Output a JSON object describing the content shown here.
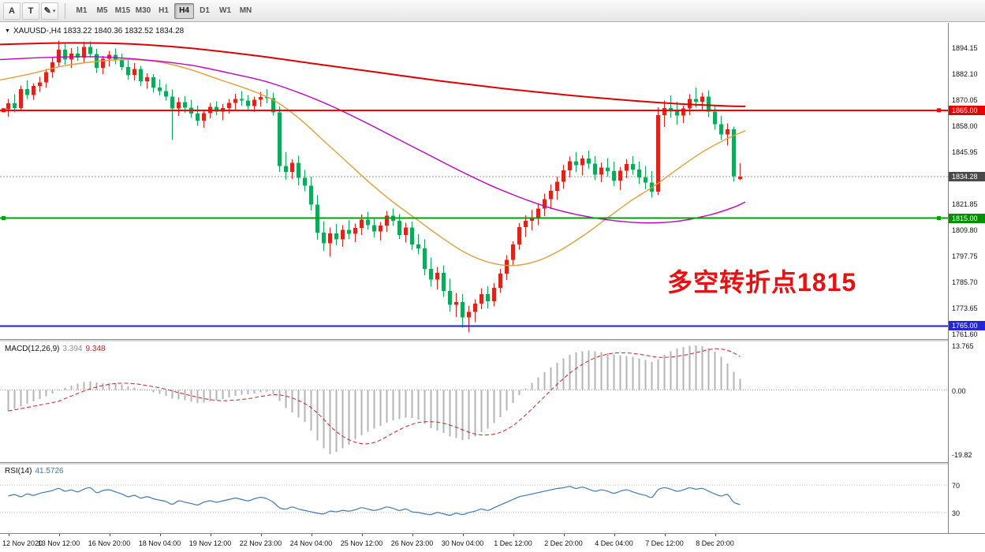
{
  "toolbar": {
    "buttons": [
      {
        "name": "cursor-tool",
        "glyph": "A"
      },
      {
        "name": "text-tool",
        "glyph": "T"
      },
      {
        "name": "draw-tool",
        "glyph": "✎",
        "caret": "▾"
      }
    ],
    "timeframes": [
      {
        "label": "M1",
        "active": false
      },
      {
        "label": "M5",
        "active": false
      },
      {
        "label": "M15",
        "active": false
      },
      {
        "label": "M30",
        "active": false
      },
      {
        "label": "H1",
        "active": false
      },
      {
        "label": "H4",
        "active": true
      },
      {
        "label": "D1",
        "active": false
      },
      {
        "label": "W1",
        "active": false
      },
      {
        "label": "MN",
        "active": false
      }
    ]
  },
  "chart": {
    "collapse_icon": "▼",
    "title": "XAUUSD-,H4 1833.22 1840.36 1832.52 1834.28",
    "annotation": {
      "text": "多空转折点1815",
      "color": "#e81010"
    },
    "colors": {
      "up": "#d8261d",
      "down": "#11a75c",
      "ma_slow": "#dd0000",
      "ma_mid": "#c400c4",
      "ma_fast": "#e09f3a",
      "bid": "#9b9b9b"
    },
    "bid_price": 1834.28,
    "price_axis": [
      "1894.15",
      "1882.10",
      "1870.05",
      "1858.00",
      "1845.95",
      "1833.90",
      "1821.85",
      "1809.80",
      "1797.75",
      "1785.70",
      "1773.65",
      "1761.60"
    ],
    "price_tags": [
      {
        "text": "1865.00",
        "price": 1865.0,
        "bg": "#e60000"
      },
      {
        "text": "1834.28",
        "price": 1834.28,
        "bg": "#4a4a4a"
      },
      {
        "text": "1815.00",
        "price": 1815.0,
        "bg": "#009000"
      },
      {
        "text": "1765.00",
        "price": 1765.0,
        "bg": "#2424d8"
      }
    ],
    "hlines": [
      {
        "name": "resistance-line",
        "price": 1865.0,
        "color": "#ff0000",
        "handles": true
      },
      {
        "name": "support-line",
        "price": 1815.0,
        "color": "#00a000",
        "handles": true
      },
      {
        "name": "lower-line",
        "price": 1765.0,
        "color": "#1c1ce0",
        "handles": false
      }
    ],
    "candles": [
      [
        1865.5,
        1870.2,
        1862.0,
        1868.3
      ],
      [
        1868.3,
        1872.5,
        1864.1,
        1866.0
      ],
      [
        1866.0,
        1876.4,
        1865.2,
        1874.8
      ],
      [
        1874.8,
        1878.9,
        1870.3,
        1872.1
      ],
      [
        1872.1,
        1877.6,
        1869.8,
        1876.2
      ],
      [
        1876.2,
        1880.4,
        1873.5,
        1877.9
      ],
      [
        1877.9,
        1884.2,
        1875.6,
        1882.7
      ],
      [
        1882.7,
        1889.5,
        1880.1,
        1887.3
      ],
      [
        1887.3,
        1897.2,
        1885.4,
        1893.1
      ],
      [
        1893.1,
        1896.4,
        1886.2,
        1888.5
      ],
      [
        1888.5,
        1893.8,
        1884.7,
        1891.2
      ],
      [
        1891.2,
        1894.6,
        1887.9,
        1889.4
      ],
      [
        1889.4,
        1896.8,
        1887.2,
        1894.3
      ],
      [
        1894.3,
        1897.0,
        1889.5,
        1891.1
      ],
      [
        1891.1,
        1893.4,
        1882.3,
        1884.6
      ],
      [
        1884.6,
        1890.2,
        1881.7,
        1888.9
      ],
      [
        1888.9,
        1892.5,
        1885.3,
        1890.7
      ],
      [
        1890.7,
        1893.6,
        1886.4,
        1888.2
      ],
      [
        1888.2,
        1891.3,
        1883.5,
        1885.1
      ],
      [
        1885.1,
        1888.7,
        1879.2,
        1881.4
      ],
      [
        1881.4,
        1886.9,
        1878.8,
        1884.2
      ],
      [
        1884.2,
        1885.6,
        1876.3,
        1878.5
      ],
      [
        1878.5,
        1882.1,
        1874.9,
        1880.3
      ],
      [
        1880.3,
        1881.8,
        1873.2,
        1875.6
      ],
      [
        1875.6,
        1879.4,
        1871.8,
        1873.9
      ],
      [
        1873.9,
        1877.2,
        1869.5,
        1871.3
      ],
      [
        1871.3,
        1874.6,
        1851.2,
        1865.8
      ],
      [
        1865.8,
        1870.9,
        1862.4,
        1868.7
      ],
      [
        1868.7,
        1871.5,
        1863.8,
        1866.2
      ],
      [
        1866.2,
        1869.8,
        1861.5,
        1863.4
      ],
      [
        1863.4,
        1867.2,
        1857.8,
        1860.1
      ],
      [
        1860.1,
        1865.3,
        1856.9,
        1863.7
      ],
      [
        1863.7,
        1868.4,
        1861.2,
        1866.5
      ],
      [
        1866.5,
        1869.1,
        1862.7,
        1864.3
      ],
      [
        1864.3,
        1867.8,
        1860.4,
        1866.1
      ],
      [
        1866.1,
        1870.2,
        1863.5,
        1868.4
      ],
      [
        1868.4,
        1872.6,
        1865.1,
        1870.3
      ],
      [
        1870.3,
        1873.9,
        1867.2,
        1869.5
      ],
      [
        1869.5,
        1872.1,
        1864.8,
        1866.9
      ],
      [
        1866.9,
        1871.4,
        1864.2,
        1869.8
      ],
      [
        1869.8,
        1873.5,
        1866.7,
        1871.2
      ],
      [
        1871.2,
        1874.8,
        1868.3,
        1870.6
      ],
      [
        1870.6,
        1873.2,
        1862.5,
        1864.1
      ],
      [
        1864.1,
        1866.8,
        1836.4,
        1839.2
      ],
      [
        1839.2,
        1845.6,
        1832.8,
        1836.5
      ],
      [
        1836.5,
        1842.3,
        1833.1,
        1840.7
      ],
      [
        1840.7,
        1843.9,
        1830.2,
        1833.6
      ],
      [
        1833.6,
        1837.4,
        1827.5,
        1830.1
      ],
      [
        1830.1,
        1834.2,
        1818.6,
        1821.3
      ],
      [
        1821.3,
        1825.7,
        1804.9,
        1808.2
      ],
      [
        1808.2,
        1813.5,
        1799.8,
        1803.4
      ],
      [
        1803.4,
        1810.6,
        1797.2,
        1807.9
      ],
      [
        1807.9,
        1812.3,
        1802.5,
        1805.1
      ],
      [
        1805.1,
        1811.8,
        1801.7,
        1809.6
      ],
      [
        1809.6,
        1814.2,
        1805.3,
        1807.8
      ],
      [
        1807.8,
        1812.5,
        1803.9,
        1810.4
      ],
      [
        1810.4,
        1816.7,
        1807.2,
        1814.3
      ],
      [
        1814.3,
        1817.9,
        1809.5,
        1811.8
      ],
      [
        1811.8,
        1815.4,
        1806.1,
        1808.9
      ],
      [
        1808.9,
        1813.2,
        1804.6,
        1811.5
      ],
      [
        1811.5,
        1818.3,
        1808.7,
        1816.2
      ],
      [
        1816.2,
        1819.5,
        1811.3,
        1813.7
      ],
      [
        1813.7,
        1816.8,
        1805.4,
        1807.2
      ],
      [
        1807.2,
        1812.9,
        1803.8,
        1810.6
      ],
      [
        1810.6,
        1813.4,
        1800.2,
        1802.8
      ],
      [
        1802.8,
        1807.5,
        1798.3,
        1800.9
      ],
      [
        1800.9,
        1805.2,
        1788.6,
        1791.4
      ],
      [
        1791.4,
        1796.8,
        1783.2,
        1786.5
      ],
      [
        1786.5,
        1792.3,
        1781.9,
        1789.7
      ],
      [
        1789.7,
        1793.1,
        1778.4,
        1781.2
      ],
      [
        1781.2,
        1786.9,
        1771.5,
        1774.8
      ],
      [
        1774.8,
        1780.3,
        1769.2,
        1776.1
      ],
      [
        1776.1,
        1779.8,
        1764.3,
        1768.9
      ],
      [
        1768.9,
        1774.2,
        1762.1,
        1771.6
      ],
      [
        1771.6,
        1777.4,
        1766.8,
        1775.3
      ],
      [
        1775.3,
        1782.6,
        1772.9,
        1779.8
      ],
      [
        1779.8,
        1783.4,
        1773.2,
        1776.5
      ],
      [
        1776.5,
        1784.9,
        1774.1,
        1782.7
      ],
      [
        1782.7,
        1791.5,
        1780.3,
        1789.2
      ],
      [
        1789.2,
        1797.8,
        1786.4,
        1795.6
      ],
      [
        1795.6,
        1804.3,
        1793.1,
        1802.8
      ],
      [
        1802.8,
        1812.6,
        1800.5,
        1810.9
      ],
      [
        1810.9,
        1816.4,
        1806.2,
        1813.7
      ],
      [
        1813.7,
        1818.9,
        1809.3,
        1815.2
      ],
      [
        1815.2,
        1821.7,
        1811.8,
        1819.4
      ],
      [
        1819.4,
        1826.3,
        1815.9,
        1823.8
      ],
      [
        1823.8,
        1830.5,
        1819.2,
        1827.6
      ],
      [
        1827.6,
        1834.2,
        1823.4,
        1831.9
      ],
      [
        1831.9,
        1839.7,
        1828.5,
        1837.2
      ],
      [
        1837.2,
        1843.6,
        1833.8,
        1841.3
      ],
      [
        1841.3,
        1845.8,
        1836.2,
        1839.5
      ],
      [
        1839.5,
        1844.1,
        1834.7,
        1842.6
      ],
      [
        1842.6,
        1846.3,
        1837.9,
        1840.2
      ],
      [
        1840.2,
        1843.7,
        1832.5,
        1835.1
      ],
      [
        1835.1,
        1840.8,
        1831.6,
        1838.4
      ],
      [
        1838.4,
        1842.9,
        1834.3,
        1836.7
      ],
      [
        1836.7,
        1841.2,
        1829.8,
        1832.4
      ],
      [
        1832.4,
        1838.6,
        1828.1,
        1836.9
      ],
      [
        1836.9,
        1842.3,
        1833.5,
        1840.1
      ],
      [
        1840.1,
        1843.8,
        1835.2,
        1837.6
      ],
      [
        1837.6,
        1841.4,
        1830.7,
        1833.9
      ],
      [
        1833.9,
        1839.2,
        1828.4,
        1831.5
      ],
      [
        1831.5,
        1836.8,
        1824.6,
        1827.3
      ],
      [
        1827.3,
        1866.4,
        1825.9,
        1862.8
      ],
      [
        1862.8,
        1869.5,
        1857.2,
        1866.1
      ],
      [
        1866.1,
        1871.8,
        1861.4,
        1864.7
      ],
      [
        1864.7,
        1868.9,
        1858.3,
        1862.5
      ],
      [
        1862.5,
        1867.2,
        1859.1,
        1865.8
      ],
      [
        1865.8,
        1872.4,
        1862.7,
        1870.3
      ],
      [
        1870.3,
        1875.6,
        1866.2,
        1868.9
      ],
      [
        1868.9,
        1873.1,
        1864.5,
        1871.4
      ],
      [
        1871.4,
        1874.2,
        1861.8,
        1864.3
      ],
      [
        1864.3,
        1867.5,
        1855.9,
        1858.6
      ],
      [
        1858.6,
        1862.3,
        1851.2,
        1853.8
      ],
      [
        1853.8,
        1858.9,
        1848.6,
        1856.2
      ],
      [
        1856.2,
        1857.4,
        1831.8,
        1834.5
      ],
      [
        1833.22,
        1840.36,
        1832.52,
        1834.28
      ]
    ],
    "ma_slow": [
      [
        0,
        1895.5
      ],
      [
        80,
        1896.2
      ],
      [
        160,
        1895.8
      ],
      [
        240,
        1893.8
      ],
      [
        320,
        1890.5
      ],
      [
        400,
        1886.5
      ],
      [
        480,
        1882.5
      ],
      [
        560,
        1878.5
      ],
      [
        640,
        1875.0
      ],
      [
        720,
        1872.0
      ],
      [
        800,
        1869.5
      ],
      [
        860,
        1868.0
      ],
      [
        920,
        1867.0
      ],
      [
        945,
        1866.8
      ]
    ],
    "ma_mid": [
      [
        0,
        1888.5
      ],
      [
        60,
        1889.5
      ],
      [
        120,
        1889.8
      ],
      [
        180,
        1888.5
      ],
      [
        240,
        1886.0
      ],
      [
        300,
        1881.5
      ],
      [
        340,
        1878.0
      ],
      [
        380,
        1873.0
      ],
      [
        420,
        1867.0
      ],
      [
        460,
        1860.0
      ],
      [
        500,
        1852.5
      ],
      [
        540,
        1845.0
      ],
      [
        580,
        1837.5
      ],
      [
        620,
        1830.5
      ],
      [
        660,
        1824.5
      ],
      [
        700,
        1819.5
      ],
      [
        740,
        1816.0
      ],
      [
        780,
        1813.8
      ],
      [
        820,
        1812.8
      ],
      [
        860,
        1813.6
      ],
      [
        900,
        1816.5
      ],
      [
        930,
        1820.0
      ],
      [
        945,
        1822.5
      ]
    ],
    "ma_fast": [
      [
        0,
        1879.0
      ],
      [
        40,
        1882.0
      ],
      [
        80,
        1885.5
      ],
      [
        120,
        1887.5
      ],
      [
        160,
        1888.5
      ],
      [
        200,
        1887.5
      ],
      [
        240,
        1884.0
      ],
      [
        280,
        1879.0
      ],
      [
        320,
        1874.0
      ],
      [
        350,
        1869.0
      ],
      [
        380,
        1861.0
      ],
      [
        410,
        1851.0
      ],
      [
        440,
        1841.0
      ],
      [
        470,
        1831.0
      ],
      [
        500,
        1822.0
      ],
      [
        530,
        1814.0
      ],
      [
        560,
        1806.0
      ],
      [
        590,
        1799.0
      ],
      [
        620,
        1794.5
      ],
      [
        650,
        1793.0
      ],
      [
        680,
        1795.0
      ],
      [
        710,
        1800.0
      ],
      [
        740,
        1807.0
      ],
      [
        770,
        1815.0
      ],
      [
        800,
        1823.0
      ],
      [
        830,
        1830.0
      ],
      [
        860,
        1838.0
      ],
      [
        890,
        1845.5
      ],
      [
        920,
        1851.5
      ],
      [
        945,
        1855.5
      ]
    ]
  },
  "macd": {
    "name": "MACD(12,26,9)",
    "value_main": "3.394",
    "value_signal": "9.348",
    "axis": [
      {
        "text": "13.765",
        "v": 13.765
      },
      {
        "text": "0.00",
        "v": 0
      },
      {
        "text": "-19.82",
        "v": -19.82
      }
    ],
    "hist": [
      -6.5,
      -5.8,
      -5.1,
      -4.3,
      -3.5,
      -2.8,
      -2.0,
      -1.1,
      -0.1,
      0.7,
      1.4,
      1.9,
      2.4,
      2.7,
      2.3,
      2.1,
      2.2,
      2.1,
      1.7,
      1.1,
      0.7,
      0.2,
      -0.2,
      -0.7,
      -1.2,
      -1.8,
      -2.7,
      -2.9,
      -3.2,
      -3.6,
      -4.0,
      -3.9,
      -3.5,
      -3.2,
      -2.8,
      -2.3,
      -1.8,
      -1.5,
      -1.4,
      -1.1,
      -0.7,
      -0.5,
      -1.2,
      -3.4,
      -5.6,
      -7.0,
      -8.5,
      -9.9,
      -12.6,
      -15.6,
      -18.0,
      -19.82,
      -19.2,
      -18.1,
      -16.9,
      -15.3,
      -14.0,
      -12.9,
      -12.0,
      -11.1,
      -10.1,
      -9.4,
      -9.0,
      -8.5,
      -8.7,
      -9.2,
      -10.5,
      -11.8,
      -12.5,
      -13.3,
      -14.4,
      -14.9,
      -15.5,
      -15.3,
      -14.4,
      -13.0,
      -11.9,
      -10.3,
      -8.4,
      -6.3,
      -4.0,
      -1.6,
      0.5,
      2.2,
      3.9,
      5.5,
      7.0,
      8.4,
      9.7,
      10.9,
      11.6,
      12.0,
      12.2,
      11.9,
      11.7,
      11.4,
      11.0,
      10.7,
      10.5,
      10.2,
      9.8,
      9.3,
      8.7,
      9.5,
      10.9,
      12.0,
      12.8,
      13.3,
      13.6,
      13.765,
      13.5,
      12.9,
      11.8,
      10.2,
      8.2,
      5.6,
      3.394
    ]
  },
  "rsi": {
    "name": "RSI(14)",
    "value": "41.5726",
    "levels": [
      70,
      30
    ],
    "values": [
      54,
      56,
      53,
      57,
      55,
      58,
      60,
      62,
      65,
      61,
      63,
      60,
      64,
      66,
      59,
      62,
      63,
      60,
      57,
      53,
      55,
      51,
      53,
      50,
      48,
      46,
      42,
      47,
      45,
      43,
      41,
      45,
      47,
      45,
      47,
      49,
      51,
      49,
      47,
      50,
      52,
      50,
      45,
      37,
      35,
      38,
      35,
      33,
      31,
      29,
      28,
      32,
      31,
      33,
      32,
      34,
      37,
      35,
      33,
      35,
      38,
      36,
      33,
      35,
      31,
      30,
      28,
      27,
      30,
      28,
      26,
      29,
      27,
      30,
      32,
      35,
      33,
      37,
      41,
      45,
      49,
      53,
      55,
      57,
      59,
      61,
      63,
      65,
      66,
      68,
      65,
      67,
      64,
      61,
      63,
      61,
      58,
      61,
      63,
      60,
      57,
      55,
      52,
      63,
      66,
      64,
      61,
      63,
      66,
      64,
      65,
      61,
      57,
      54,
      56,
      45,
      41.57
    ]
  },
  "time_axis": {
    "step_candles": 8,
    "labels": [
      "12 Nov 2020",
      "13 Nov 12:00",
      "16 Nov 20:00",
      "18 Nov 04:00",
      "19 Nov 12:00",
      "22 Nov 23:00",
      "24 Nov 04:00",
      "25 Nov 12:00",
      "26 Nov 23:00",
      "30 Nov 04:00",
      "1 Dec 12:00",
      "2 Dec 20:00",
      "4 Dec 04:00",
      "7 Dec 12:00",
      "8 Dec 20:00"
    ]
  }
}
